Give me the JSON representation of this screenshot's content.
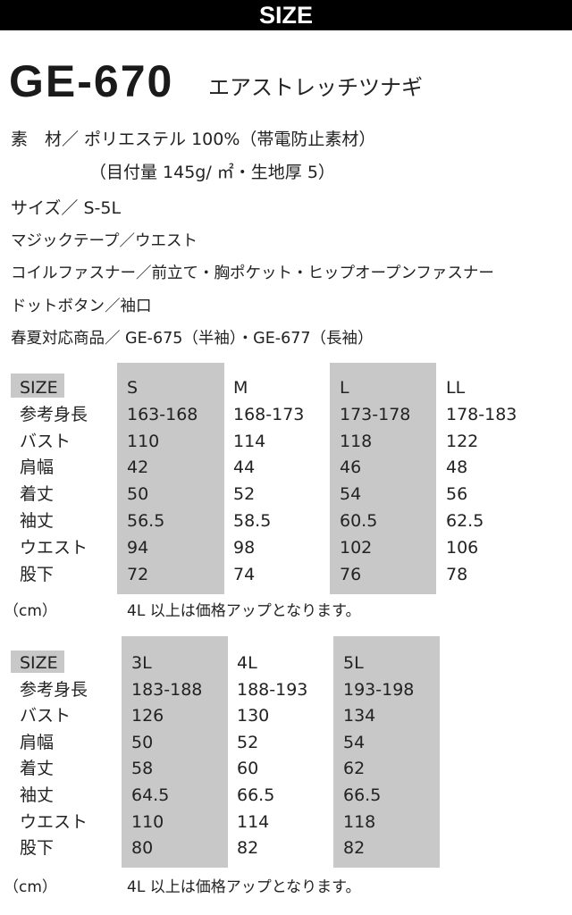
{
  "header": {
    "title": "SIZE"
  },
  "product": {
    "model": "GE-670",
    "name": "エアストレッチツナギ"
  },
  "specs": [
    "素　材／ ポリエステル 100%（帯電防止素材）",
    "（目付量 145g/ ㎡・生地厚 5）",
    "サイズ／ S-5L",
    "マジックテープ／ウエスト",
    "コイルファスナー／前立て・胸ポケット・ヒップオープンファスナー",
    "ドットボタン／袖口",
    "春夏対応商品／ GE-675（半袖）・GE-677（長袖）"
  ],
  "tables": [
    {
      "header_label": "SIZE",
      "sizes": [
        "S",
        "M",
        "L",
        "LL"
      ],
      "rows": [
        {
          "label": "参考身長",
          "values": [
            "163-168",
            "168-173",
            "173-178",
            "178-183"
          ]
        },
        {
          "label": "バスト",
          "values": [
            "110",
            "114",
            "118",
            "122"
          ]
        },
        {
          "label": "肩幅",
          "values": [
            "42",
            "44",
            "46",
            "48"
          ]
        },
        {
          "label": "着丈",
          "values": [
            "50",
            "52",
            "54",
            "56"
          ]
        },
        {
          "label": "袖丈",
          "values": [
            "56.5",
            "58.5",
            "60.5",
            "62.5"
          ]
        },
        {
          "label": "ウエスト",
          "values": [
            "94",
            "98",
            "102",
            "106"
          ]
        },
        {
          "label": "股下",
          "values": [
            "72",
            "74",
            "76",
            "78"
          ]
        }
      ],
      "unit": "（cm）",
      "note": "4L 以上は価格アップとなります。"
    },
    {
      "header_label": "SIZE",
      "sizes": [
        "3L",
        "4L",
        "5L"
      ],
      "rows": [
        {
          "label": "参考身長",
          "values": [
            "183-188",
            "188-193",
            "193-198"
          ]
        },
        {
          "label": "バスト",
          "values": [
            "126",
            "130",
            "134"
          ]
        },
        {
          "label": "肩幅",
          "values": [
            "50",
            "52",
            "54"
          ]
        },
        {
          "label": "着丈",
          "values": [
            "58",
            "60",
            "62"
          ]
        },
        {
          "label": "袖丈",
          "values": [
            "64.5",
            "66.5",
            "66.5"
          ]
        },
        {
          "label": "ウエスト",
          "values": [
            "110",
            "114",
            "118"
          ]
        },
        {
          "label": "股下",
          "values": [
            "80",
            "82",
            "82"
          ]
        }
      ],
      "unit": "（cm）",
      "note": "4L 以上は価格アップとなります。"
    }
  ],
  "colors": {
    "header_bg": "#000000",
    "shade": "#c8c8c8"
  }
}
